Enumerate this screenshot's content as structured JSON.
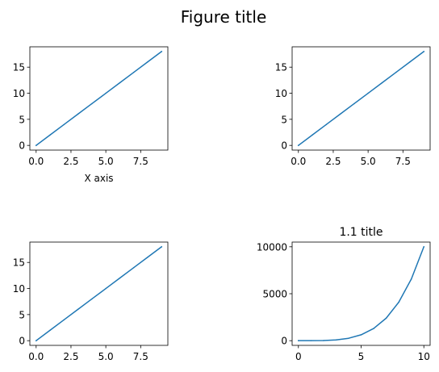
{
  "figure": {
    "title": "Figure title"
  },
  "chart_data": [
    {
      "type": "line",
      "position": "top-left",
      "title": "",
      "xlabel": "X axis",
      "ylabel": "",
      "xlim": [
        -0.45,
        9.45
      ],
      "ylim": [
        -0.9,
        18.9
      ],
      "xticks": [
        0,
        2.5,
        5,
        7.5
      ],
      "xtick_labels": [
        "0.0",
        "2.5",
        "5.0",
        "7.5"
      ],
      "yticks": [
        0,
        5,
        10,
        15
      ],
      "ytick_labels": [
        "0",
        "5",
        "10",
        "15"
      ],
      "series": [
        {
          "color": "#1f77b4",
          "x": [
            0,
            1,
            2,
            3,
            4,
            5,
            6,
            7,
            8,
            9
          ],
          "y": [
            0,
            2,
            4,
            6,
            8,
            10,
            12,
            14,
            16,
            18
          ]
        }
      ],
      "grid": false
    },
    {
      "type": "line",
      "position": "top-right",
      "title": "",
      "xlabel": "",
      "ylabel": "",
      "xlim": [
        -0.45,
        9.45
      ],
      "ylim": [
        -0.9,
        18.9
      ],
      "xticks": [
        0,
        2.5,
        5,
        7.5
      ],
      "xtick_labels": [
        "0.0",
        "2.5",
        "5.0",
        "7.5"
      ],
      "yticks": [
        0,
        5,
        10,
        15
      ],
      "ytick_labels": [
        "0",
        "5",
        "10",
        "15"
      ],
      "series": [
        {
          "color": "#1f77b4",
          "x": [
            0,
            1,
            2,
            3,
            4,
            5,
            6,
            7,
            8,
            9
          ],
          "y": [
            0,
            2,
            4,
            6,
            8,
            10,
            12,
            14,
            16,
            18
          ]
        }
      ],
      "grid": false
    },
    {
      "type": "line",
      "position": "bottom-left",
      "title": "",
      "xlabel": "",
      "ylabel": "",
      "xlim": [
        -0.45,
        9.45
      ],
      "ylim": [
        -0.9,
        18.9
      ],
      "xticks": [
        0,
        2.5,
        5,
        7.5
      ],
      "xtick_labels": [
        "0.0",
        "2.5",
        "5.0",
        "7.5"
      ],
      "yticks": [
        0,
        5,
        10,
        15
      ],
      "ytick_labels": [
        "0",
        "5",
        "10",
        "15"
      ],
      "series": [
        {
          "color": "#1f77b4",
          "x": [
            0,
            1,
            2,
            3,
            4,
            5,
            6,
            7,
            8,
            9
          ],
          "y": [
            0,
            2,
            4,
            6,
            8,
            10,
            12,
            14,
            16,
            18
          ]
        }
      ],
      "grid": false
    },
    {
      "type": "line",
      "position": "bottom-right",
      "title": "1.1 title",
      "xlabel": "",
      "ylabel": "",
      "xlim": [
        -0.5,
        10.5
      ],
      "ylim": [
        -500,
        10500
      ],
      "xticks": [
        0,
        5,
        10
      ],
      "xtick_labels": [
        "0",
        "5",
        "10"
      ],
      "yticks": [
        0,
        5000,
        10000
      ],
      "ytick_labels": [
        "0",
        "5000",
        "10000"
      ],
      "series": [
        {
          "color": "#1f77b4",
          "x": [
            0,
            1,
            2,
            3,
            4,
            5,
            6,
            7,
            8,
            9,
            10
          ],
          "y": [
            0,
            1,
            16,
            81,
            256,
            625,
            1296,
            2401,
            4096,
            6561,
            10000
          ]
        }
      ],
      "grid": false
    }
  ]
}
